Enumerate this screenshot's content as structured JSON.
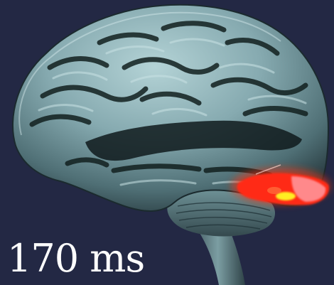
{
  "image": {
    "subject": "brain",
    "colors": {
      "background": "#232844",
      "brain_light": "#9fc1c6",
      "brain_mid": "#6e9499",
      "brain_dark": "#2c3f44",
      "activation_core": "#ff2a14",
      "activation_glow": "#ff9aa0",
      "activation_hot": "#ffee22"
    }
  },
  "label": {
    "text": "170 ms"
  }
}
